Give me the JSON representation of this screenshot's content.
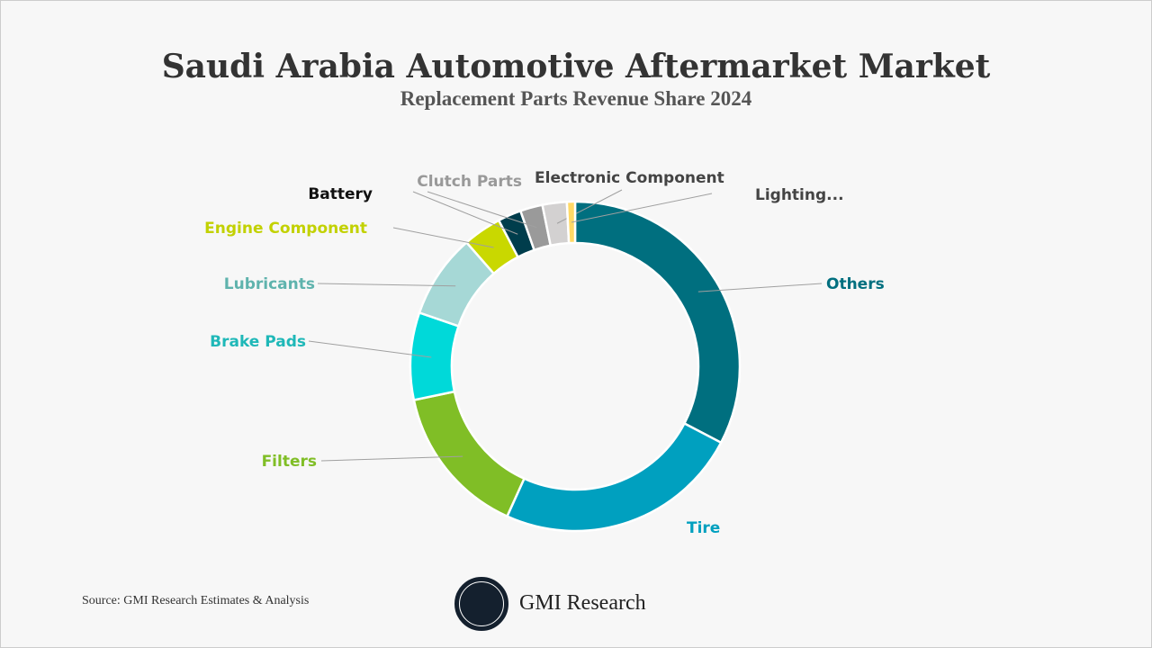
{
  "chart_data": {
    "type": "pie",
    "donut": true,
    "title": "Saudi Arabia Automotive Aftermarket Market",
    "subtitle": "Replacement Parts Revenue Share 2024",
    "unit": "%",
    "slices": [
      {
        "label": "Others",
        "value": 32.8,
        "color": "#006f7f",
        "label_color": "#006f7f"
      },
      {
        "label": "Tire",
        "value": 24.2,
        "color": "#00a0bf",
        "label_color": "#00a0bf"
      },
      {
        "label": "Filters",
        "value": 15.0,
        "color": "#80be26",
        "label_color": "#80be26"
      },
      {
        "label": "Brake Pads",
        "value": 8.6,
        "color": "#00d9d9",
        "label_color": "#1fb8b8"
      },
      {
        "label": "Lubricants",
        "value": 8.3,
        "color": "#a6d8d6",
        "label_color": "#5fb3ad"
      },
      {
        "label": "Engine Component",
        "value": 3.8,
        "color": "#c9d800",
        "label_color": "#c2d100"
      },
      {
        "label": "Battery",
        "value": 2.3,
        "color": "#003d4c",
        "label_color": "#111111"
      },
      {
        "label": "Clutch Parts",
        "value": 2.2,
        "color": "#9a9a9a",
        "label_color": "#999999"
      },
      {
        "label": "Electronic Component",
        "value": 2.4,
        "color": "#d3d1d1",
        "label_color": "#444444"
      },
      {
        "label": "Lighting...",
        "value": 0.8,
        "color": "#ffd966",
        "label_color": "#444444"
      }
    ]
  },
  "footer": {
    "source": "Source: GMI Research Estimates & Analysis",
    "brand": "GMI Research"
  }
}
